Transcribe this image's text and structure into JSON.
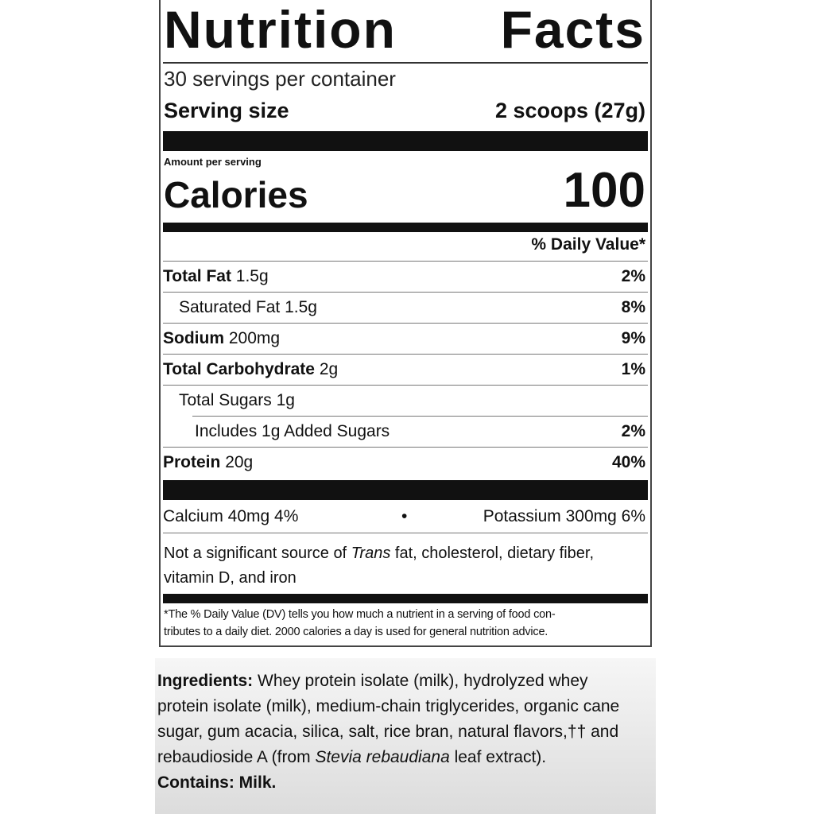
{
  "title": "Nutrition Facts",
  "title_words": [
    "Nutrition",
    "Facts"
  ],
  "servings": "30 servings per container",
  "serving_size_label": "Serving size",
  "serving_size_value": "2 scoops (27g)",
  "amount_per_serving": "Amount per serving",
  "calories_label": "Calories",
  "calories_value": "100",
  "dv_header": "% Daily Value*",
  "nutrients": [
    {
      "name": "Total Fat",
      "amount": "1.5g",
      "dv": "2%",
      "bold": true,
      "indent": 0
    },
    {
      "name": "Saturated Fat",
      "amount": "1.5g",
      "dv": "8%",
      "bold": false,
      "indent": 1
    },
    {
      "name": "Sodium",
      "amount": "200mg",
      "dv": "9%",
      "bold": true,
      "indent": 0
    },
    {
      "name": "Total Carbohydrate",
      "amount": "2g",
      "dv": "1%",
      "bold": true,
      "indent": 0
    },
    {
      "name": "Total Sugars",
      "amount": "1g",
      "dv": "",
      "bold": false,
      "indent": 1
    },
    {
      "name": "Includes 1g Added Sugars",
      "amount": "",
      "dv": "2%",
      "bold": false,
      "indent": 2
    },
    {
      "name": "Protein",
      "amount": "20g",
      "dv": "40%",
      "bold": true,
      "indent": 0
    }
  ],
  "minerals": {
    "left": "Calcium 40mg 4%",
    "sep": "•",
    "right": "Potassium 300mg 6%"
  },
  "not_significant": {
    "pre": "Not a significant source of ",
    "italic": "Trans",
    "post": " fat, cholesterol, dietary fiber,",
    "line2": "vitamin D, and iron"
  },
  "footnote": [
    "*The % Daily Value (DV) tells you how much a nutrient in a serving of food con-",
    "tributes to a daily diet. 2000 calories a day is used for general nutrition advice."
  ],
  "ingredients": {
    "label": "Ingredients:",
    "line1": " Whey protein isolate (milk), hydrolyzed whey",
    "line2": "protein isolate (milk), medium-chain triglycerides, organic cane",
    "line3": "sugar, gum acacia, silica, salt, rice bran, natural flavors,†† and",
    "line4_pre": "rebaudioside A (from ",
    "line4_italic": "Stevia rebaudiana",
    "line4_post": " leaf extract).",
    "contains": "Contains: Milk."
  }
}
